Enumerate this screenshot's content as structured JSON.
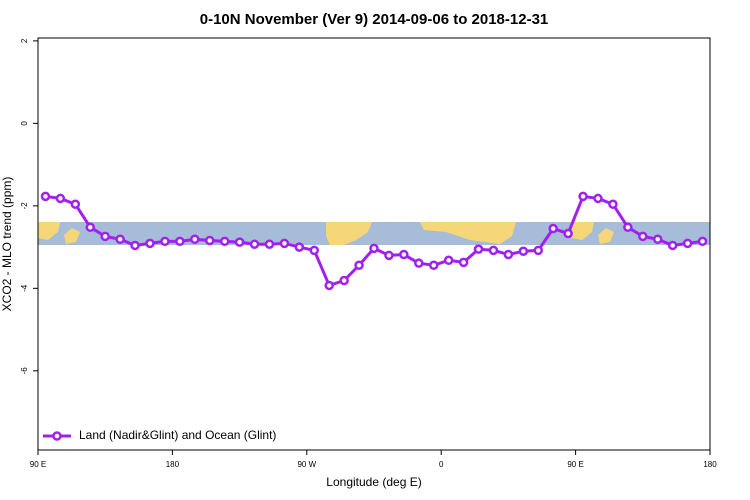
{
  "chart_data": {
    "type": "line",
    "title": "0-10N November (Ver 9)   2014-09-06 to 2018-12-31",
    "x_label": "Longitude (deg E)",
    "y_label": "XCO2 - MLO trend (ppm)",
    "x": [
      95,
      105,
      115,
      125,
      135,
      145,
      155,
      165,
      175,
      185,
      195,
      205,
      215,
      225,
      235,
      245,
      255,
      265,
      275,
      285,
      295,
      305,
      315,
      325,
      335,
      345,
      355,
      365,
      375,
      385,
      395,
      405,
      415,
      425,
      435,
      445,
      455,
      465,
      475,
      485,
      495,
      505,
      515,
      525,
      535
    ],
    "series": [
      {
        "name": "Land (Nadir&Glint) and Ocean (Glint)",
        "color": "#a020f0",
        "values": [
          -1.77,
          -1.82,
          -1.96,
          -2.52,
          -2.74,
          -2.81,
          -2.96,
          -2.91,
          -2.86,
          -2.86,
          -2.81,
          -2.84,
          -2.86,
          -2.88,
          -2.93,
          -2.93,
          -2.91,
          -3.0,
          -3.08,
          -3.93,
          -3.81,
          -3.44,
          -3.03,
          -3.2,
          -3.18,
          -3.39,
          -3.44,
          -3.32,
          -3.37,
          -3.05,
          -3.08,
          -3.18,
          -3.1,
          -3.08,
          -2.55,
          -2.67,
          -1.77,
          -1.82,
          -1.96,
          -2.52,
          -2.74,
          -2.81,
          -2.96,
          -2.91,
          -2.86
        ]
      }
    ],
    "xlim": [
      90,
      540
    ],
    "xticks": [
      {
        "value": 90,
        "label": "90 E"
      },
      180,
      {
        "value": 270,
        "label": "90 W"
      },
      {
        "value": 360,
        "label": "0"
      },
      {
        "value": 450,
        "label": "90 E"
      },
      {
        "value": 540,
        "label": "180"
      }
    ],
    "ylim": [
      -7.92,
      2.07
    ],
    "yticks": [
      -6,
      -4,
      -2,
      0,
      2
    ],
    "legend": "bottom-left"
  }
}
